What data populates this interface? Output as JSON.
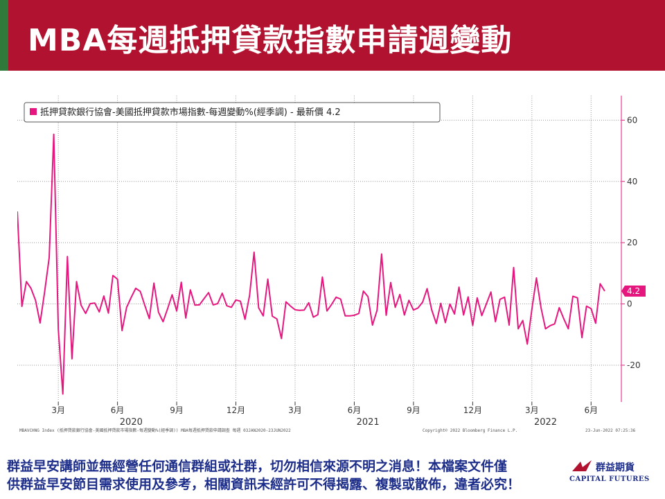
{
  "header": {
    "title": "MBA每週抵押貸款指數申請週變動"
  },
  "colors": {
    "title_bar": "#b0122f",
    "series": "#e6167f",
    "footer_text": "#1d2d8a"
  },
  "chart_data": {
    "type": "line",
    "legend": "抵押貸款銀行協會-美國抵押貸款市場指數-每週變動%(經季調) - 最新價 4.2",
    "last_value_label": "4.2",
    "y_ticks": [
      "60",
      "40",
      "20",
      "0",
      "-20"
    ],
    "y_tick_values": [
      60,
      40,
      20,
      0,
      -20
    ],
    "ylim": [
      -32,
      68
    ],
    "x_tick_labels": [
      "3月",
      "6月",
      "9月",
      "12月",
      "3月",
      "6月",
      "9月",
      "12月",
      "3月",
      "6月"
    ],
    "x_tick_weeks": [
      9,
      22,
      35,
      48,
      61,
      74,
      87,
      100,
      113,
      126
    ],
    "year_labels": [
      "2020",
      "2021",
      "2022"
    ],
    "year_label_weeks": [
      25,
      77,
      116
    ],
    "grid": true,
    "series": [
      {
        "values": [
          30.2,
          -0.8,
          7.3,
          5.1,
          1.2,
          -6.2,
          3.9,
          15.1,
          55.4,
          -8.4,
          -29.4,
          15.5,
          -17.9,
          7.3,
          -0.4,
          -3.1,
          0.1,
          0.3,
          -2.6,
          2.6,
          -3.0,
          9.3,
          8.1,
          -8.7,
          -1.1,
          2.1,
          5.1,
          4.1,
          -0.5,
          -4.8,
          6.8,
          -2.7,
          -5.8,
          -1.6,
          3.0,
          -2.3,
          7.1,
          -4.6,
          4.6,
          -0.4,
          -0.3,
          1.7,
          3.7,
          -0.3,
          0.1,
          3.5,
          -0.6,
          -1.1,
          1.3,
          0.9,
          -5.0,
          2.8,
          16.9,
          -1.3,
          -3.9,
          8.1,
          -4.0,
          -4.9,
          -11.3,
          0.7,
          -0.7,
          -1.9,
          -2.1,
          -2.0,
          0.4,
          -4.3,
          -3.5,
          8.8,
          -2.3,
          -0.2,
          2.2,
          1.6,
          -3.9,
          -3.9,
          -3.7,
          -3.1,
          4.2,
          2.4,
          -6.9,
          -2.1,
          16.3,
          -3.7,
          7.0,
          -1.1,
          3.1,
          -3.6,
          1.2,
          -2.0,
          -1.3,
          0.6,
          5.0,
          -1.9,
          -6.4,
          0.2,
          -6.1,
          0.0,
          -3.3,
          5.5,
          -3.6,
          2.3,
          -7.0,
          2.0,
          -3.8,
          0.0,
          3.9,
          -5.8,
          1.5,
          2.2,
          -6.9,
          11.9,
          -8.1,
          -5.4,
          -13.1,
          -1.8,
          8.5,
          -1.2,
          -8.1,
          -7.1,
          -6.5,
          -1.2,
          -4.8,
          -8.1,
          2.5,
          2.0,
          -11.0,
          -0.7,
          -1.5,
          -6.3,
          6.6,
          4.2
        ]
      }
    ]
  },
  "chart_footer": {
    "left": "MBAVCHNG Index (抵押貸款銀行協會-美國抵押貸款市場指數-每週變動%(經季調)) MBA每週抵押貸款申請調查  每週 03JAN2020-23JUN2022",
    "copyright": "Copyright© 2022 Bloomberg Finance L.P.",
    "timestamp": "23-Jun-2022 07:25:36"
  },
  "footer": {
    "line1": "群益早安講師並無經營任何通信群組或社群，切勿相信來源不明之消息！本檔案文件僅",
    "line2": "供群益早安節目需求使用及參考，相關資訊未經許可不得揭露、複製或散佈，違者必究！"
  },
  "logo": {
    "name_cn": "群益期貨",
    "name_en": "CAPITAL FUTURES"
  }
}
